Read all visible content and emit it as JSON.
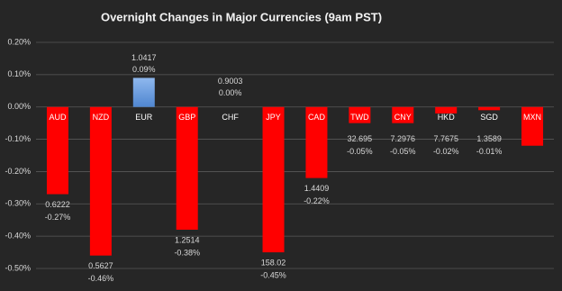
{
  "chart_data": {
    "type": "bar",
    "title": "Overnight Changes in Major Currencies (9am PST)",
    "categories": [
      "AUD",
      "NZD",
      "EUR",
      "GBP",
      "CHF",
      "JPY",
      "CAD",
      "TWD",
      "CNY",
      "HKD",
      "SGD",
      "MXN"
    ],
    "values": [
      -0.27,
      -0.46,
      0.09,
      -0.38,
      0.0,
      -0.45,
      -0.22,
      -0.05,
      -0.05,
      -0.02,
      -0.01,
      -0.12
    ],
    "value_labels": [
      "-0.27%",
      "-0.46%",
      "0.09%",
      "-0.38%",
      "0.00%",
      "-0.45%",
      "-0.22%",
      "-0.05%",
      "-0.05%",
      "-0.02%",
      "-0.01%",
      null
    ],
    "rates": [
      0.6222,
      0.5627,
      1.0417,
      1.2514,
      0.9003,
      158.02,
      1.4409,
      32.695,
      7.2976,
      7.7675,
      1.3589,
      null
    ],
    "colors": {
      "negative": "#ff0000",
      "positive": "#5b9bd5"
    },
    "ylim": [
      -0.5,
      0.2
    ],
    "yticks": [
      {
        "value": -0.5,
        "label": "-0.50%"
      },
      {
        "value": -0.4,
        "label": "-0.40%"
      },
      {
        "value": -0.3,
        "label": "-0.30%"
      },
      {
        "value": -0.2,
        "label": "-0.20%"
      },
      {
        "value": -0.1,
        "label": "-0.10%"
      },
      {
        "value": 0,
        "label": "0.00%"
      },
      {
        "value": 0.1,
        "label": "0.10%"
      },
      {
        "value": 0.2,
        "label": "0.20%"
      }
    ],
    "grid": true
  }
}
